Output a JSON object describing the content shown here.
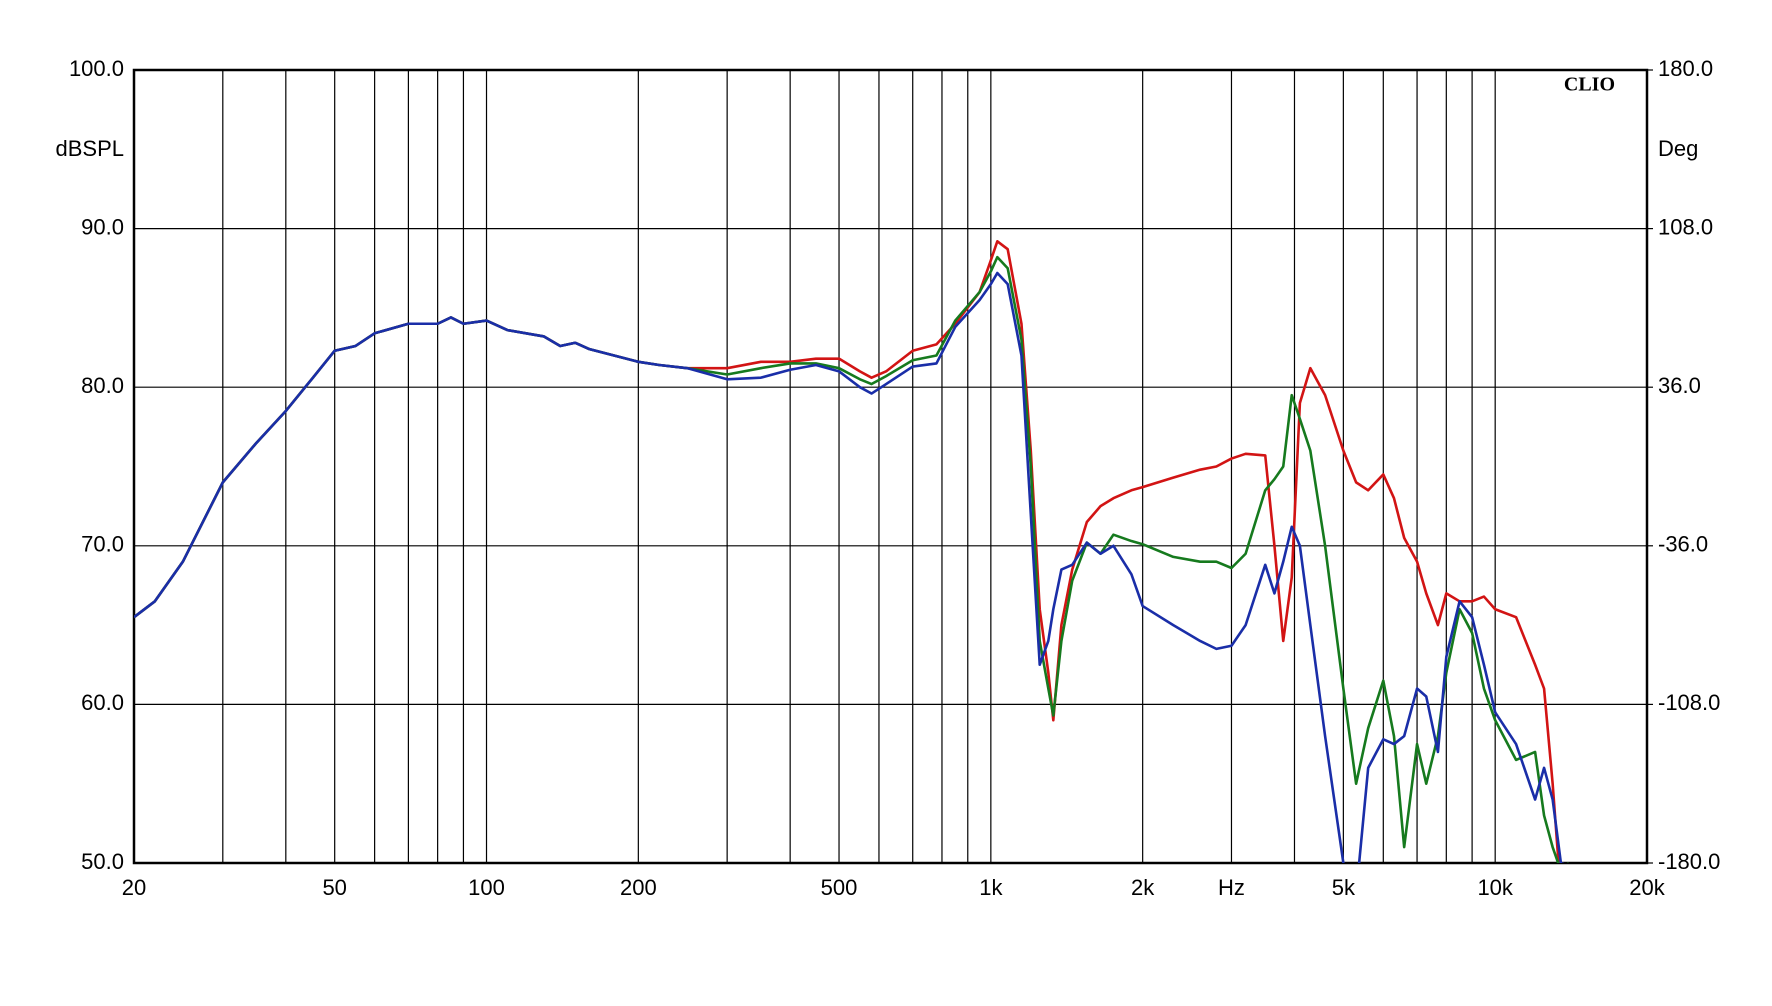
{
  "chart_data": {
    "type": "line",
    "y_label": "dBSPL",
    "y2_label": "Deg",
    "x_unit_label": "Hz",
    "watermark": "CLIO",
    "log_x": true,
    "grid": true,
    "x": [
      20,
      22,
      25,
      30,
      35,
      40,
      45,
      50,
      55,
      60,
      70,
      80,
      85,
      90,
      100,
      110,
      130,
      140,
      150,
      160,
      200,
      220,
      250,
      300,
      350,
      400,
      450,
      500,
      550,
      580,
      620,
      700,
      780,
      850,
      950,
      1000,
      1030,
      1080,
      1150,
      1200,
      1250,
      1300,
      1330,
      1380,
      1450,
      1550,
      1650,
      1750,
      1900,
      2000,
      2300,
      2600,
      2800,
      3000,
      3200,
      3500,
      3650,
      3800,
      3950,
      4100,
      4300,
      4600,
      5000,
      5300,
      5600,
      6000,
      6300,
      6600,
      7000,
      7300,
      7700,
      8000,
      8500,
      9000,
      9500,
      10000,
      11000,
      12000,
      12500,
      13000,
      13500,
      14000
    ],
    "series": [
      {
        "color": "#d21414",
        "values": [
          65.5,
          66.5,
          69,
          74,
          76.5,
          78.5,
          80.5,
          82.3,
          82.6,
          83.4,
          84,
          84,
          84.4,
          84,
          84.2,
          83.6,
          83.2,
          82.6,
          82.8,
          82.4,
          81.6,
          81.4,
          81.2,
          81.2,
          81.6,
          81.6,
          81.8,
          81.8,
          81,
          80.6,
          81,
          82.3,
          82.7,
          84,
          86,
          88,
          89.2,
          88.7,
          84,
          76,
          66,
          62,
          59,
          65,
          68.5,
          71.5,
          72.5,
          73,
          73.5,
          73.7,
          74.3,
          74.8,
          75,
          75.5,
          75.8,
          75.7,
          70,
          64,
          68,
          79,
          81.2,
          79.5,
          76,
          74,
          73.5,
          74.5,
          73,
          70.5,
          69,
          67,
          65,
          67,
          66.5,
          66.5,
          66.8,
          66,
          65.5,
          62.5,
          61,
          55,
          48,
          47
        ]
      },
      {
        "color": "#167a1e",
        "values": [
          65.5,
          66.5,
          69,
          74,
          76.5,
          78.5,
          80.5,
          82.3,
          82.6,
          83.4,
          84,
          84,
          84.4,
          84,
          84.2,
          83.6,
          83.2,
          82.6,
          82.8,
          82.4,
          81.6,
          81.4,
          81.2,
          80.8,
          81.2,
          81.5,
          81.5,
          81.2,
          80.5,
          80.2,
          80.7,
          81.7,
          82,
          84.2,
          86,
          87.3,
          88.2,
          87.5,
          83,
          75,
          64,
          61,
          59.3,
          64,
          67.8,
          70.2,
          69.5,
          70.7,
          70.3,
          70.1,
          69.3,
          69,
          69,
          68.6,
          69.5,
          73.5,
          74.2,
          75,
          79.5,
          78,
          76,
          70,
          61,
          55,
          58.5,
          61.5,
          58,
          51,
          57.5,
          55,
          58,
          62,
          66,
          64.5,
          61,
          59,
          56.5,
          57,
          53,
          51,
          49.5,
          50
        ]
      },
      {
        "color": "#1a2ea8",
        "values": [
          65.5,
          66.5,
          69,
          74,
          76.5,
          78.5,
          80.5,
          82.3,
          82.6,
          83.4,
          84,
          84,
          84.4,
          84,
          84.2,
          83.6,
          83.2,
          82.6,
          82.8,
          82.4,
          81.6,
          81.4,
          81.2,
          80.5,
          80.6,
          81.1,
          81.4,
          81,
          80,
          79.6,
          80.2,
          81.3,
          81.5,
          83.8,
          85.5,
          86.5,
          87.2,
          86.5,
          82,
          72,
          62.5,
          64,
          66,
          68.5,
          68.8,
          70.2,
          69.5,
          70,
          68.2,
          66.2,
          65,
          64,
          63.5,
          63.7,
          65,
          68.8,
          67,
          69,
          71.2,
          70,
          65,
          58,
          50,
          48,
          56,
          57.8,
          57.5,
          58,
          61,
          60.5,
          57,
          63,
          66.5,
          65.5,
          62.5,
          59.5,
          57.5,
          54,
          56,
          54,
          50,
          49.8
        ]
      }
    ],
    "xlim": [
      20,
      20000
    ],
    "xticks": [
      20,
      {
        "value": 30,
        "label": null
      },
      {
        "value": 40,
        "label": null
      },
      50,
      {
        "value": 60,
        "label": null
      },
      {
        "value": 70,
        "label": null
      },
      {
        "value": 80,
        "label": null
      },
      {
        "value": 90,
        "label": null
      },
      100,
      200,
      {
        "value": 300,
        "label": null
      },
      {
        "value": 400,
        "label": null
      },
      500,
      {
        "value": 600,
        "label": null
      },
      {
        "value": 700,
        "label": null
      },
      {
        "value": 800,
        "label": null
      },
      {
        "value": 900,
        "label": null
      },
      {
        "value": 1000,
        "label": "1k"
      },
      {
        "value": 2000,
        "label": "2k"
      },
      {
        "value": 3000,
        "label": "Hz"
      },
      {
        "value": 4000,
        "label": null
      },
      {
        "value": 5000,
        "label": "5k"
      },
      {
        "value": 6000,
        "label": null
      },
      {
        "value": 7000,
        "label": null
      },
      {
        "value": 8000,
        "label": null
      },
      {
        "value": 9000,
        "label": null
      },
      {
        "value": 10000,
        "label": "10k"
      },
      {
        "value": 20000,
        "label": "20k"
      }
    ],
    "ylim": [
      50,
      100
    ],
    "yticks": [
      {
        "value": 50,
        "label": "50.0"
      },
      {
        "value": 60,
        "label": "60.0"
      },
      {
        "value": 70,
        "label": "70.0"
      },
      {
        "value": 80,
        "label": "80.0"
      },
      {
        "value": 90,
        "label": "90.0"
      },
      {
        "value": 100,
        "label": "100.0"
      }
    ],
    "y2lim": [
      -180,
      180
    ],
    "y2ticks": [
      {
        "value": -180,
        "label": "-180.0"
      },
      {
        "value": -108,
        "label": "-108.0"
      },
      {
        "value": -36,
        "label": "-36.0"
      },
      {
        "value": 36,
        "label": "36.0"
      },
      {
        "value": 108,
        "label": "108.0"
      },
      {
        "value": 180,
        "label": "180.0"
      }
    ]
  }
}
